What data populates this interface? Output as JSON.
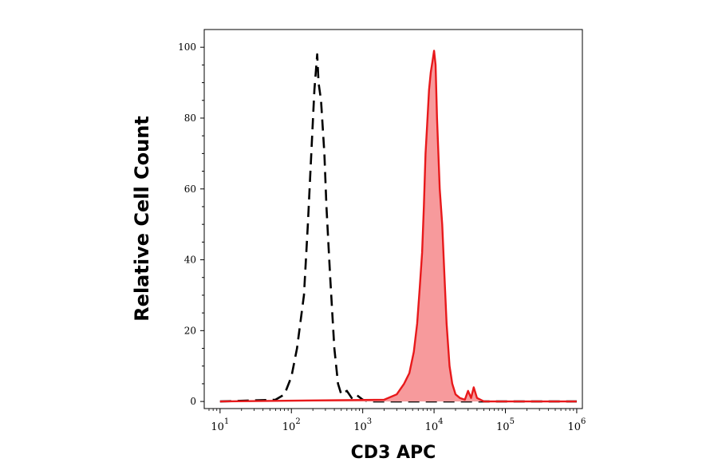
{
  "chart_data": {
    "type": "area",
    "title": "",
    "xlabel": "CD3 APC",
    "ylabel": "Relative Cell Count",
    "x_scale": "log",
    "xlim": [
      6,
      1200000
    ],
    "ylim": [
      -2,
      105
    ],
    "grid": false,
    "legend": "none",
    "x_ticks": [
      {
        "base": "10",
        "exp": "1"
      },
      {
        "base": "10",
        "exp": "2"
      },
      {
        "base": "10",
        "exp": "3"
      },
      {
        "base": "10",
        "exp": "4"
      },
      {
        "base": "10",
        "exp": "5"
      },
      {
        "base": "10",
        "exp": "6"
      }
    ],
    "y_ticks": [
      "0",
      "20",
      "40",
      "60",
      "80",
      "100"
    ],
    "series": [
      {
        "style": "dashed",
        "color": "#000000",
        "fill": "none",
        "x": [
          10,
          60,
          80,
          100,
          120,
          150,
          170,
          190,
          210,
          230,
          240,
          260,
          290,
          310,
          350,
          400,
          450,
          500,
          600,
          700,
          800,
          1000,
          1200,
          1000000
        ],
        "y": [
          0,
          0.5,
          2,
          7,
          15,
          30,
          50,
          70,
          88,
          98,
          90,
          85,
          70,
          55,
          35,
          15,
          5,
          2,
          3,
          1,
          2,
          0.5,
          0,
          0
        ]
      },
      {
        "style": "solid",
        "color": "#e8191b",
        "fill": "#f79a9c",
        "x": [
          10,
          2000,
          3000,
          3800,
          4500,
          5200,
          5800,
          6300,
          6800,
          7200,
          7600,
          8000,
          8500,
          9000,
          9500,
          10000,
          10500,
          11000,
          11500,
          12000,
          13000,
          14000,
          15000,
          16500,
          18000,
          20000,
          23000,
          27000,
          30000,
          33000,
          36000,
          40000,
          50000,
          1000000
        ],
        "y": [
          0,
          0.5,
          2,
          5,
          8,
          14,
          22,
          32,
          42,
          55,
          70,
          78,
          88,
          93,
          96,
          99,
          95,
          80,
          70,
          60,
          50,
          35,
          22,
          10,
          5,
          2,
          1,
          0.5,
          3,
          1,
          4,
          1,
          0,
          0
        ]
      }
    ]
  }
}
